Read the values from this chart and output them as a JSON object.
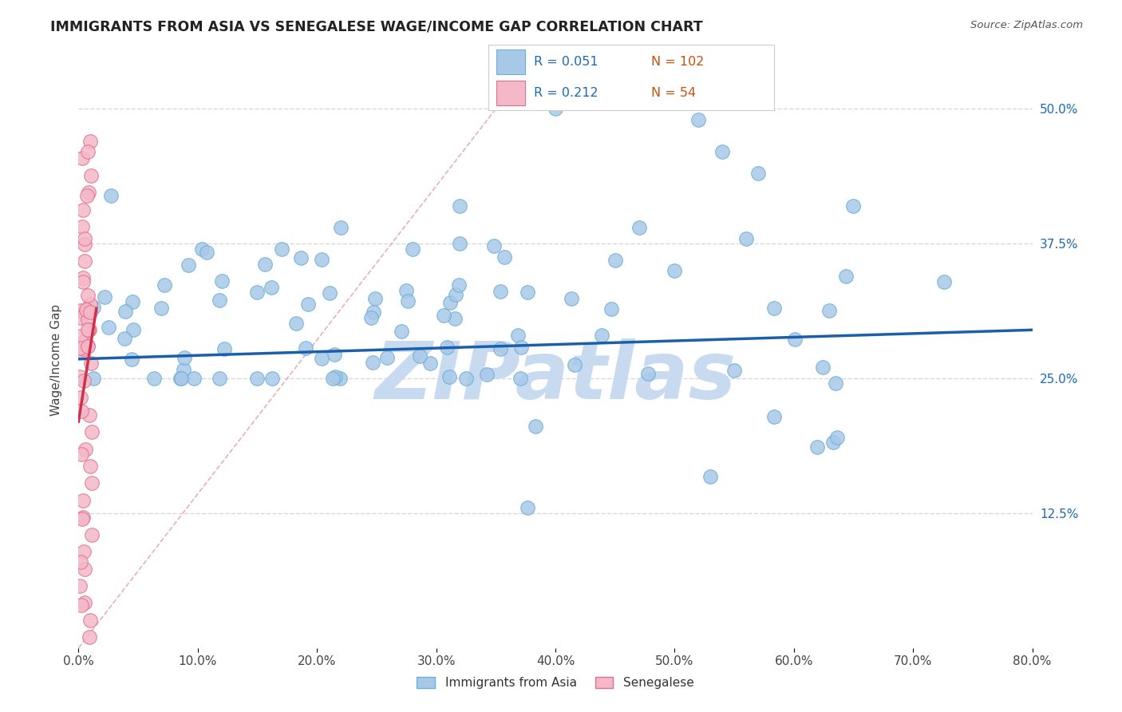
{
  "title": "IMMIGRANTS FROM ASIA VS SENEGALESE WAGE/INCOME GAP CORRELATION CHART",
  "source": "Source: ZipAtlas.com",
  "xlabel_asia": "Immigrants from Asia",
  "xlabel_senegalese": "Senegalese",
  "ylabel": "Wage/Income Gap",
  "xmin": 0.0,
  "xmax": 0.8,
  "ymin": 0.0,
  "ymax": 0.535,
  "ytick_vals": [
    0.0,
    0.125,
    0.25,
    0.375,
    0.5
  ],
  "ytick_labels": [
    "",
    "12.5%",
    "25.0%",
    "37.5%",
    "50.0%"
  ],
  "xtick_vals": [
    0.0,
    0.1,
    0.2,
    0.3,
    0.4,
    0.5,
    0.6,
    0.7,
    0.8
  ],
  "xtick_labels": [
    "0.0%",
    "10.0%",
    "20.0%",
    "30.0%",
    "40.0%",
    "50.0%",
    "60.0%",
    "70.0%",
    "80.0%"
  ],
  "blue_R": "0.051",
  "blue_N": "102",
  "pink_R": "0.212",
  "pink_N": "54",
  "blue_dot_color": "#a8c8e8",
  "blue_dot_edge": "#6baed6",
  "pink_dot_color": "#f4b8c8",
  "pink_dot_edge": "#e07090",
  "blue_line_color": "#1a5fa8",
  "pink_line_color": "#d0304a",
  "diag_line_color": "#e8b0b8",
  "legend_R_color": "#1a6ab5",
  "legend_N_color": "#c85010",
  "watermark": "ZIPatlas",
  "watermark_color": "#c8daf0",
  "bg_color": "#ffffff",
  "grid_color": "#d8d8d8",
  "blue_trend_y0": 0.268,
  "blue_trend_y1": 0.295,
  "pink_trend_x0": 0.0,
  "pink_trend_y0": 0.27,
  "pink_trend_x1": 0.014,
  "pink_trend_y1": 0.3
}
